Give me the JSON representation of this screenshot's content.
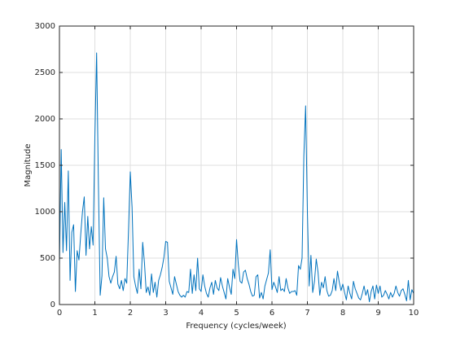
{
  "chart_data": {
    "type": "line",
    "xlabel": "Frequency (cycles/week)",
    "ylabel": "Magnitude",
    "color": "#0072bd",
    "grid": true,
    "xlim": [
      0,
      10
    ],
    "xticks": [
      0,
      1,
      2,
      3,
      4,
      5,
      6,
      7,
      8,
      9,
      10
    ],
    "ylim": [
      0,
      3000
    ],
    "yticks": [
      0,
      500,
      1000,
      1500,
      2000,
      2500,
      3000
    ],
    "x": [
      0,
      0.05,
      0.1,
      0.15,
      0.2,
      0.25,
      0.3,
      0.35,
      0.4,
      0.45,
      0.5,
      0.55,
      0.6,
      0.65,
      0.7,
      0.75,
      0.8,
      0.85,
      0.9,
      0.95,
      1,
      1.05,
      1.1,
      1.15,
      1.2,
      1.25,
      1.3,
      1.35,
      1.4,
      1.45,
      1.5,
      1.55,
      1.6,
      1.65,
      1.7,
      1.75,
      1.8,
      1.85,
      1.9,
      1.95,
      2,
      2.05,
      2.1,
      2.15,
      2.2,
      2.25,
      2.3,
      2.35,
      2.4,
      2.45,
      2.5,
      2.55,
      2.6,
      2.65,
      2.7,
      2.75,
      2.8,
      2.85,
      2.9,
      2.95,
      3,
      3.05,
      3.1,
      3.15,
      3.2,
      3.25,
      3.3,
      3.35,
      3.4,
      3.45,
      3.5,
      3.55,
      3.6,
      3.65,
      3.7,
      3.75,
      3.8,
      3.85,
      3.9,
      3.95,
      4,
      4.05,
      4.1,
      4.15,
      4.2,
      4.25,
      4.3,
      4.35,
      4.4,
      4.45,
      4.5,
      4.55,
      4.6,
      4.65,
      4.7,
      4.75,
      4.8,
      4.85,
      4.9,
      4.95,
      5,
      5.05,
      5.1,
      5.15,
      5.2,
      5.25,
      5.3,
      5.35,
      5.4,
      5.45,
      5.5,
      5.55,
      5.6,
      5.65,
      5.7,
      5.75,
      5.8,
      5.85,
      5.9,
      5.95,
      6,
      6.05,
      6.1,
      6.15,
      6.2,
      6.25,
      6.3,
      6.35,
      6.4,
      6.45,
      6.5,
      6.55,
      6.6,
      6.65,
      6.7,
      6.75,
      6.8,
      6.85,
      6.9,
      6.95,
      7,
      7.05,
      7.1,
      7.15,
      7.2,
      7.25,
      7.3,
      7.35,
      7.4,
      7.45,
      7.5,
      7.55,
      7.6,
      7.65,
      7.7,
      7.75,
      7.8,
      7.85,
      7.9,
      7.95,
      8,
      8.05,
      8.1,
      8.15,
      8.2,
      8.25,
      8.3,
      8.35,
      8.4,
      8.45,
      8.5,
      8.55,
      8.6,
      8.65,
      8.7,
      8.75,
      8.8,
      8.85,
      8.9,
      8.95,
      9,
      9.05,
      9.1,
      9.15,
      9.2,
      9.25,
      9.3,
      9.35,
      9.4,
      9.45,
      9.5,
      9.55,
      9.6,
      9.65,
      9.7,
      9.75,
      9.8,
      9.85,
      9.9,
      9.95,
      10
    ],
    "values": [
      420,
      1670,
      560,
      1100,
      580,
      1440,
      260,
      780,
      860,
      140,
      580,
      480,
      750,
      1000,
      1160,
      530,
      950,
      600,
      840,
      640,
      1800,
      2710,
      1300,
      100,
      310,
      1150,
      600,
      500,
      300,
      230,
      300,
      350,
      520,
      220,
      170,
      260,
      150,
      280,
      230,
      800,
      1430,
      1050,
      300,
      200,
      120,
      380,
      170,
      670,
      450,
      130,
      190,
      100,
      330,
      130,
      240,
      80,
      260,
      320,
      400,
      510,
      680,
      670,
      250,
      180,
      110,
      300,
      220,
      140,
      100,
      80,
      100,
      80,
      140,
      130,
      380,
      120,
      320,
      150,
      500,
      170,
      140,
      320,
      200,
      120,
      80,
      180,
      240,
      110,
      260,
      180,
      150,
      290,
      200,
      130,
      60,
      280,
      190,
      110,
      380,
      280,
      700,
      430,
      250,
      230,
      350,
      370,
      280,
      220,
      140,
      90,
      100,
      300,
      320,
      70,
      130,
      60,
      200,
      270,
      340,
      590,
      160,
      240,
      190,
      130,
      300,
      150,
      170,
      140,
      280,
      180,
      120,
      140,
      140,
      150,
      100,
      420,
      380,
      500,
      1600,
      2140,
      1000,
      200,
      530,
      130,
      250,
      490,
      350,
      100,
      240,
      180,
      300,
      150,
      90,
      100,
      150,
      280,
      150,
      360,
      240,
      150,
      220,
      130,
      50,
      200,
      120,
      60,
      250,
      170,
      120,
      70,
      50,
      120,
      200,
      100,
      160,
      30,
      140,
      200,
      60,
      210,
      120,
      200,
      80,
      100,
      150,
      110,
      60,
      130,
      80,
      120,
      200,
      130,
      90,
      150,
      170,
      110,
      40,
      260,
      50,
      160,
      120
    ]
  }
}
